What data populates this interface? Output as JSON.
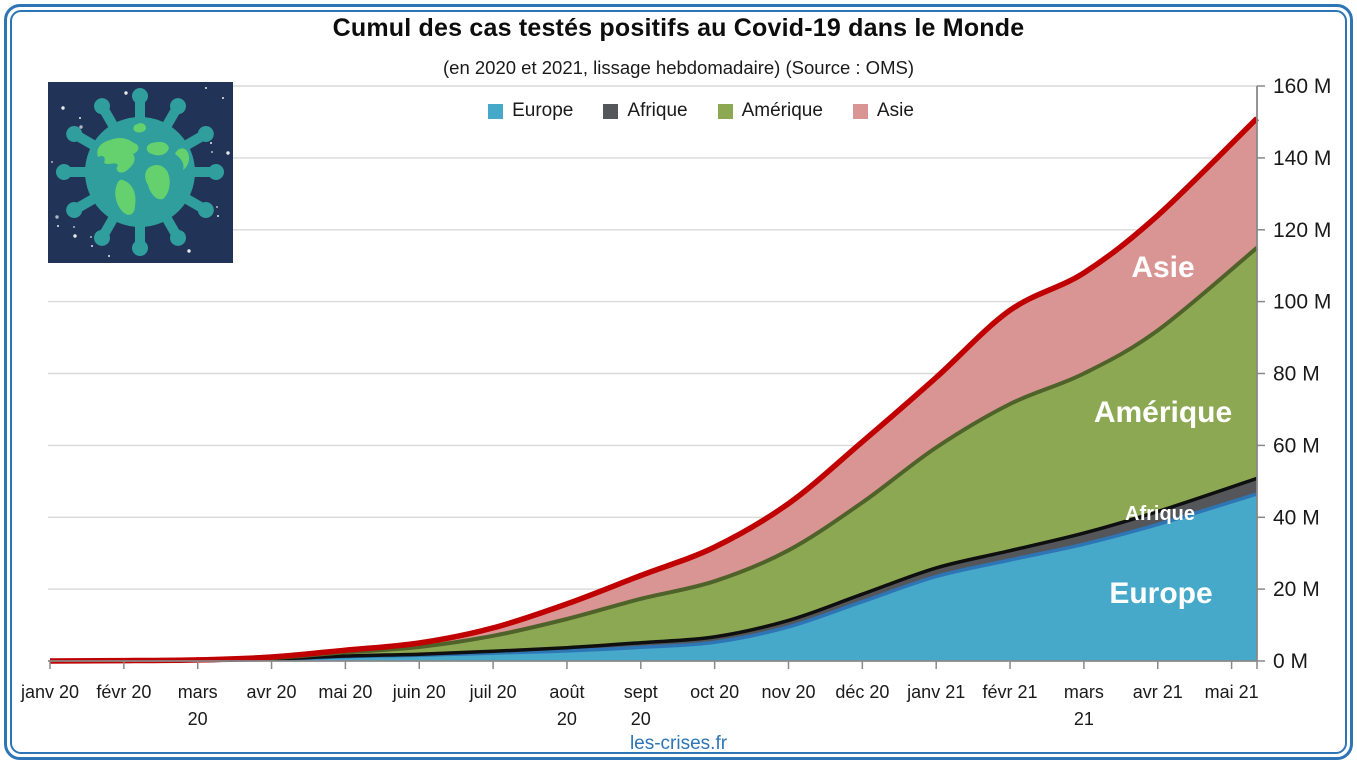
{
  "frame": {
    "border_color": "#2E75B6"
  },
  "header": {
    "title": "Cumul des cas testés positifs au Covid-19 dans le Monde",
    "subtitle": "(en 2020 et 2021, lissage hebdomadaire) (Source : OMS)"
  },
  "legend": [
    {
      "label": "Europe",
      "color": "#47A9C9"
    },
    {
      "label": "Afrique",
      "color": "#54565A"
    },
    {
      "label": "Amérique",
      "color": "#8DA853"
    },
    {
      "label": "Asie",
      "color": "#D99593"
    }
  ],
  "logo": {
    "name": "virus-globe-logo",
    "background": "#213457",
    "virus_color": "#2F9E9C",
    "continents_color": "#64D06E",
    "stars_color": "#FFFFFF"
  },
  "footer": {
    "site": "les-crises.fr"
  },
  "chart_data": {
    "type": "area",
    "stacked": true,
    "unit": "millions de cas",
    "categories": [
      "janv 20",
      "févr 20",
      "mars\n20",
      "avr 20",
      "mai 20",
      "juin 20",
      "juil 20",
      "août\n20",
      "sept\n20",
      "oct 20",
      "nov 20",
      "déc 20",
      "janv 21",
      "févr 21",
      "mars\n21",
      "avr 21",
      "mai 21"
    ],
    "series": [
      {
        "name": "Europe",
        "area_color": "#47A9C9",
        "line_color": "#2E75B6",
        "line_width": 3.5,
        "values": [
          0,
          0,
          0.1,
          0.4,
          1.2,
          1.6,
          2.2,
          2.8,
          3.8,
          5.2,
          9.5,
          16.5,
          23.5,
          28.1,
          32.5,
          38.0,
          46.5
        ]
      },
      {
        "name": "Afrique",
        "area_color": "#54565A",
        "line_color": "#0F0F0F",
        "line_width": 3.5,
        "values": [
          0,
          0,
          0,
          0.1,
          0.2,
          0.3,
          0.5,
          0.9,
          1.3,
          1.5,
          1.8,
          2.1,
          2.4,
          2.6,
          3.1,
          3.6,
          4.3
        ]
      },
      {
        "name": "Amérique",
        "area_color": "#8DA853",
        "line_color": "#4E622A",
        "line_width": 4,
        "values": [
          0,
          0,
          0.1,
          0.3,
          1.0,
          2.0,
          4.3,
          8.0,
          12.2,
          15.5,
          19.5,
          25.5,
          33.5,
          40.8,
          44.4,
          50.4,
          64.2
        ]
      },
      {
        "name": "Asie",
        "area_color": "#D99593",
        "line_color": "#C00000",
        "line_width": 5.5,
        "values": [
          0,
          0.1,
          0.1,
          0.3,
          0.6,
          1.1,
          2.2,
          4.2,
          6.5,
          9.5,
          13.0,
          16.9,
          19.5,
          26.1,
          28.0,
          32.0,
          36.0
        ]
      }
    ],
    "y_ticks": [
      "0 M",
      "20 M",
      "40 M",
      "60 M",
      "80 M",
      "100 M",
      "120 M",
      "140 M",
      "160 M"
    ],
    "ylim": [
      0,
      160
    ],
    "y_tick_step": 20,
    "grid": true,
    "legend_position": "top",
    "area_labels": [
      {
        "text": "Asie",
        "x": 1163,
        "y": 277,
        "size": 30
      },
      {
        "text": "Amérique",
        "x": 1163,
        "y": 422,
        "size": 30
      },
      {
        "text": "Afrique",
        "x": 1160,
        "y": 520,
        "size": 20
      },
      {
        "text": "Europe",
        "x": 1161,
        "y": 603,
        "size": 30
      }
    ]
  }
}
